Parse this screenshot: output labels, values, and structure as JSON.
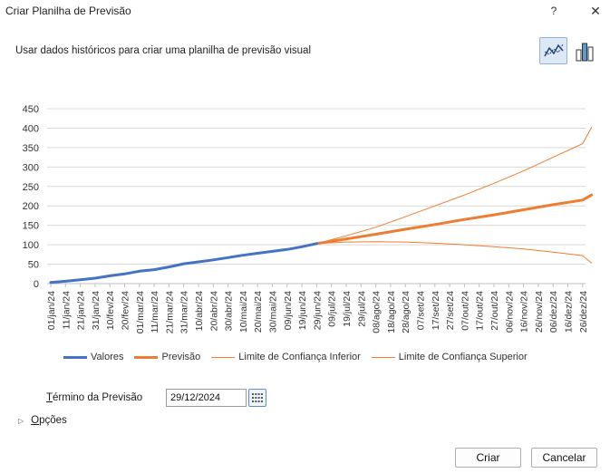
{
  "window": {
    "title": "Criar Planilha de Previsão",
    "help_label": "?",
    "close_label": "✕"
  },
  "description": "Usar dados históricos para criar uma planilha de previsão visual",
  "chart_types": [
    {
      "name": "line-chart",
      "selected": true
    },
    {
      "name": "column-chart",
      "selected": false
    }
  ],
  "colors": {
    "valores": "#4472c4",
    "previsao": "#ed7d31",
    "limites": "#ed7d31",
    "grid": "#d9d9d9",
    "selected_bg": "#dce8f5"
  },
  "chart_data": {
    "type": "line",
    "ylim": [
      0,
      450
    ],
    "y_ticks": [
      "450",
      "400",
      "350",
      "300",
      "250",
      "200",
      "150",
      "100",
      "50",
      "0"
    ],
    "x_tick_labels": [
      "01/jan/24",
      "11/jan/24",
      "21/jan/24",
      "31/jan/24",
      "10/fev/24",
      "20/fev/24",
      "01/mar/24",
      "11/mar/24",
      "21/mar/24",
      "31/mar/24",
      "10/abr/24",
      "20/abr/24",
      "30/abr/24",
      "10/mai/24",
      "20/mai/24",
      "30/mai/24",
      "09/jun/24",
      "19/jun/24",
      "29/jun/24",
      "09/jul/24",
      "19/jul/24",
      "29/jul/24",
      "08/ago/24",
      "18/ago/24",
      "28/ago/24",
      "07/set/24",
      "17/set/24",
      "27/set/24",
      "07/out/24",
      "17/out/24",
      "27/out/24",
      "06/nov/24",
      "16/nov/24",
      "26/nov/24",
      "06/dez/24",
      "16/dez/24",
      "26/dez/24"
    ],
    "grid": true,
    "legend_position": "bottom",
    "series": [
      {
        "name": "Valores",
        "x_index": [
          0,
          1,
          2,
          3,
          4,
          5,
          6,
          7,
          8,
          9,
          10,
          11,
          12,
          13,
          14,
          15,
          16,
          17,
          18
        ],
        "values": [
          3,
          6,
          10,
          14,
          20,
          25,
          32,
          36,
          43,
          51,
          56,
          61,
          67,
          73,
          78,
          83,
          88,
          95,
          103
        ]
      },
      {
        "name": "Previsão",
        "x_index": [
          18,
          20,
          22,
          24,
          26,
          28,
          30,
          32,
          34,
          36,
          36.6
        ],
        "values": [
          103,
          115,
          127,
          140,
          152,
          165,
          177,
          190,
          203,
          215,
          228
        ]
      },
      {
        "name": "Limite de Confiança Inferior",
        "x_index": [
          18,
          20,
          22,
          24,
          26,
          28,
          30,
          32,
          34,
          36,
          36.6
        ],
        "values": [
          103,
          107,
          108,
          107,
          104,
          100,
          95,
          89,
          81,
          72,
          53
        ]
      },
      {
        "name": "Limite de Confiança Superior",
        "x_index": [
          18,
          20,
          22,
          24,
          26,
          28,
          30,
          32,
          34,
          36,
          36.6
        ],
        "values": [
          103,
          123,
          145,
          172,
          200,
          228,
          258,
          290,
          325,
          360,
          402
        ]
      }
    ]
  },
  "forecast_end": {
    "label_prefix": "T",
    "label_rest": "érmino da Previsão",
    "value": "29/12/2024"
  },
  "options": {
    "label_prefix": "O",
    "label_rest": "pções"
  },
  "buttons": {
    "create": "Criar",
    "cancel": "Cancelar"
  }
}
